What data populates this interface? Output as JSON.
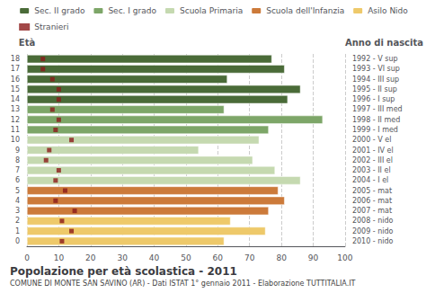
{
  "chart_data": {
    "type": "bar",
    "orientation": "horizontal",
    "title": "Popolazione per età scolastica - 2011",
    "subtitle": "COMUNE DI MONTE SAN SAVINO (AR) - Dati ISTAT 1° gennaio 2011 - Elaborazione TUTTITALIA.IT",
    "ylabel": "Età",
    "y2label": "Anno di nascita",
    "categories": [
      "18",
      "17",
      "16",
      "15",
      "14",
      "13",
      "12",
      "11",
      "10",
      "9",
      "8",
      "7",
      "6",
      "5",
      "4",
      "3",
      "2",
      "1",
      "0"
    ],
    "y2ticks": [
      {
        "value": 18,
        "label": "1992 - V sup"
      },
      {
        "value": 17,
        "label": "1993 - VI sup"
      },
      {
        "value": 16,
        "label": "1994 - III sup"
      },
      {
        "value": 15,
        "label": "1995 - II sup"
      },
      {
        "value": 14,
        "label": "1996 - I sup"
      },
      {
        "value": 13,
        "label": "1997 - III med"
      },
      {
        "value": 12,
        "label": "1998 - II med"
      },
      {
        "value": 11,
        "label": "1999 - I med"
      },
      {
        "value": 10,
        "label": "2000 - V el"
      },
      {
        "value": 9,
        "label": "2001 - IV el"
      },
      {
        "value": 8,
        "label": "2002 - III el"
      },
      {
        "value": 7,
        "label": "2003 - II el"
      },
      {
        "value": 6,
        "label": "2004 - I el"
      },
      {
        "value": 5,
        "label": "2005 - mat"
      },
      {
        "value": 4,
        "label": "2006 - mat"
      },
      {
        "value": 3,
        "label": "2007 - mat"
      },
      {
        "value": 2,
        "label": "2008 - nido"
      },
      {
        "value": 1,
        "label": "2009 - nido"
      },
      {
        "value": 0,
        "label": "2010 - nido"
      }
    ],
    "series": [
      {
        "name": "Sec. II grado",
        "type": "bar",
        "color": "#4a6b38",
        "values": [
          77,
          81,
          63,
          86,
          82,
          null,
          null,
          null,
          null,
          null,
          null,
          null,
          null,
          null,
          null,
          null,
          null,
          null,
          null
        ]
      },
      {
        "name": "Sec. I grado",
        "type": "bar",
        "color": "#7da668",
        "values": [
          null,
          null,
          null,
          null,
          null,
          62,
          93,
          76,
          null,
          null,
          null,
          null,
          null,
          null,
          null,
          null,
          null,
          null,
          null
        ]
      },
      {
        "name": "Scuola Primaria",
        "type": "bar",
        "color": "#c5d9b0",
        "values": [
          null,
          null,
          null,
          null,
          null,
          null,
          null,
          null,
          73,
          54,
          71,
          78,
          86,
          null,
          null,
          null,
          null,
          null,
          null
        ]
      },
      {
        "name": "Scuola dell'Infanzia",
        "type": "bar",
        "color": "#cc7a3a",
        "values": [
          null,
          null,
          null,
          null,
          null,
          null,
          null,
          null,
          null,
          null,
          null,
          null,
          null,
          79,
          81,
          76,
          null,
          null,
          null
        ]
      },
      {
        "name": "Asilo Nido",
        "type": "bar",
        "color": "#eec96a",
        "values": [
          null,
          null,
          null,
          null,
          null,
          null,
          null,
          null,
          null,
          null,
          null,
          null,
          null,
          null,
          null,
          null,
          64,
          75,
          62
        ]
      },
      {
        "name": "Stranieri",
        "type": "scatter",
        "marker": "square",
        "color": "#8b1a1a",
        "values": [
          5,
          5,
          8,
          10,
          10,
          8,
          10,
          9,
          14,
          7,
          6,
          10,
          9,
          12,
          9,
          15,
          11,
          14,
          11
        ]
      }
    ],
    "xlim": [
      0,
      100
    ],
    "xticks": [
      0,
      10,
      20,
      30,
      40,
      50,
      60,
      70,
      80,
      90,
      100
    ],
    "grid": true,
    "legend": "top"
  }
}
